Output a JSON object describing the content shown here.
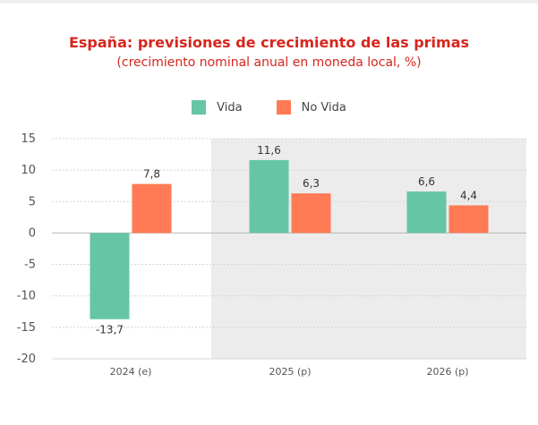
{
  "chart_data": {
    "type": "bar",
    "title": "España: previsiones de crecimiento de las primas",
    "subtitle": "(crecimiento nominal anual en moneda local, %)",
    "categories": [
      "2024 (e)",
      "2025 (p)",
      "2026 (p)"
    ],
    "series": [
      {
        "name": "Vida",
        "color": "#66c5a5",
        "values": [
          -13.7,
          11.6,
          6.6
        ],
        "labels": [
          "-13,7",
          "11,6",
          "6,6"
        ]
      },
      {
        "name": "No Vida",
        "color": "#ff7a55",
        "values": [
          7.8,
          6.3,
          4.4
        ],
        "labels": [
          "7,8",
          "6,3",
          "4,4"
        ]
      }
    ],
    "ylim": [
      -20,
      15
    ],
    "yticks": [
      15,
      10,
      5,
      0,
      -5,
      -10,
      -15,
      -20
    ],
    "ytick_labels": [
      "15",
      "10",
      "5",
      "0",
      "-5",
      "-10",
      "-15",
      "-20"
    ],
    "xlabel": "",
    "ylabel": "",
    "grid": true,
    "forecast_shading": {
      "from_category": "2025 (p)",
      "color": "#ececec"
    },
    "legend": "top-center"
  }
}
